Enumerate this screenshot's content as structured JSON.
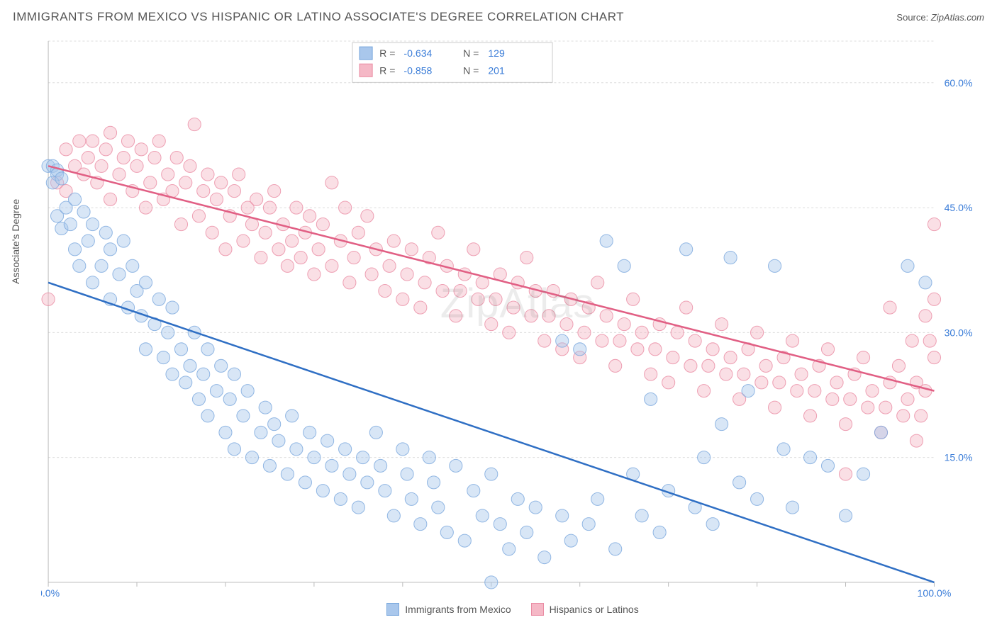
{
  "title": "IMMIGRANTS FROM MEXICO VS HISPANIC OR LATINO ASSOCIATE'S DEGREE CORRELATION CHART",
  "source_label": "Source:",
  "source_value": "ZipAtlas.com",
  "y_axis_label": "Associate's Degree",
  "watermark": "ZipAtlas",
  "chart": {
    "type": "scatter",
    "xlim": [
      0,
      100
    ],
    "ylim": [
      0,
      65
    ],
    "x_ticks": [
      0,
      100
    ],
    "x_tick_labels": [
      "0.0%",
      "100.0%"
    ],
    "x_minor_ticks": [
      10,
      20,
      30,
      40,
      50,
      60,
      70,
      80,
      90
    ],
    "y_ticks": [
      15,
      30,
      45,
      60
    ],
    "y_tick_labels": [
      "15.0%",
      "30.0%",
      "45.0%",
      "60.0%"
    ],
    "background_color": "#ffffff",
    "grid_color": "#dcdcdc",
    "axis_color": "#bbbbbb",
    "marker_radius": 9,
    "marker_opacity": 0.45,
    "line_width": 2.5,
    "series": [
      {
        "name": "Immigrants from Mexico",
        "fill": "#a9c7ec",
        "stroke": "#7aa8dd",
        "line_color": "#2f6fc4",
        "R": "-0.634",
        "N": "129",
        "trend": {
          "x1": 0,
          "y1": 36,
          "x2": 100,
          "y2": -2
        },
        "points": [
          [
            0,
            50
          ],
          [
            0.5,
            50
          ],
          [
            1,
            49.5
          ],
          [
            1,
            49
          ],
          [
            0.5,
            48
          ],
          [
            1.5,
            48.5
          ],
          [
            1,
            44
          ],
          [
            1.5,
            42.5
          ],
          [
            2,
            45
          ],
          [
            2.5,
            43
          ],
          [
            3,
            46
          ],
          [
            3,
            40
          ],
          [
            4,
            44.5
          ],
          [
            3.5,
            38
          ],
          [
            4.5,
            41
          ],
          [
            5,
            43
          ],
          [
            5,
            36
          ],
          [
            6,
            38
          ],
          [
            6.5,
            42
          ],
          [
            7,
            40
          ],
          [
            7,
            34
          ],
          [
            8,
            37
          ],
          [
            8.5,
            41
          ],
          [
            9,
            33
          ],
          [
            9.5,
            38
          ],
          [
            10,
            35
          ],
          [
            10.5,
            32
          ],
          [
            11,
            36
          ],
          [
            11,
            28
          ],
          [
            12,
            31
          ],
          [
            12.5,
            34
          ],
          [
            13,
            27
          ],
          [
            13.5,
            30
          ],
          [
            14,
            33
          ],
          [
            14,
            25
          ],
          [
            15,
            28
          ],
          [
            15.5,
            24
          ],
          [
            16,
            26
          ],
          [
            16.5,
            30
          ],
          [
            17,
            22
          ],
          [
            17.5,
            25
          ],
          [
            18,
            28
          ],
          [
            18,
            20
          ],
          [
            19,
            23
          ],
          [
            19.5,
            26
          ],
          [
            20,
            18
          ],
          [
            20.5,
            22
          ],
          [
            21,
            25
          ],
          [
            21,
            16
          ],
          [
            22,
            20
          ],
          [
            22.5,
            23
          ],
          [
            23,
            15
          ],
          [
            24,
            18
          ],
          [
            24.5,
            21
          ],
          [
            25,
            14
          ],
          [
            25.5,
            19
          ],
          [
            26,
            17
          ],
          [
            27,
            13
          ],
          [
            27.5,
            20
          ],
          [
            28,
            16
          ],
          [
            29,
            12
          ],
          [
            29.5,
            18
          ],
          [
            30,
            15
          ],
          [
            31,
            11
          ],
          [
            31.5,
            17
          ],
          [
            32,
            14
          ],
          [
            33,
            10
          ],
          [
            33.5,
            16
          ],
          [
            34,
            13
          ],
          [
            35,
            9
          ],
          [
            35.5,
            15
          ],
          [
            36,
            12
          ],
          [
            37,
            18
          ],
          [
            37.5,
            14
          ],
          [
            38,
            11
          ],
          [
            39,
            8
          ],
          [
            40,
            16
          ],
          [
            40.5,
            13
          ],
          [
            41,
            10
          ],
          [
            42,
            7
          ],
          [
            43,
            15
          ],
          [
            43.5,
            12
          ],
          [
            44,
            9
          ],
          [
            45,
            6
          ],
          [
            46,
            14
          ],
          [
            47,
            5
          ],
          [
            48,
            11
          ],
          [
            49,
            8
          ],
          [
            50,
            0
          ],
          [
            50,
            13
          ],
          [
            51,
            7
          ],
          [
            52,
            4
          ],
          [
            53,
            10
          ],
          [
            54,
            6
          ],
          [
            55,
            9
          ],
          [
            56,
            3
          ],
          [
            58,
            29
          ],
          [
            58,
            8
          ],
          [
            59,
            5
          ],
          [
            60,
            28
          ],
          [
            61,
            7
          ],
          [
            62,
            10
          ],
          [
            63,
            41
          ],
          [
            64,
            4
          ],
          [
            65,
            38
          ],
          [
            66,
            13
          ],
          [
            67,
            8
          ],
          [
            68,
            22
          ],
          [
            69,
            6
          ],
          [
            70,
            11
          ],
          [
            72,
            40
          ],
          [
            73,
            9
          ],
          [
            74,
            15
          ],
          [
            75,
            7
          ],
          [
            76,
            19
          ],
          [
            77,
            39
          ],
          [
            78,
            12
          ],
          [
            79,
            23
          ],
          [
            80,
            10
          ],
          [
            82,
            38
          ],
          [
            83,
            16
          ],
          [
            84,
            9
          ],
          [
            86,
            15
          ],
          [
            88,
            14
          ],
          [
            90,
            8
          ],
          [
            92,
            13
          ],
          [
            94,
            18
          ],
          [
            97,
            38
          ],
          [
            99,
            36
          ]
        ]
      },
      {
        "name": "Hispanics or Latinos",
        "fill": "#f5b8c6",
        "stroke": "#ea8ba3",
        "line_color": "#e15f84",
        "R": "-0.858",
        "N": "201",
        "trend": {
          "x1": 0,
          "y1": 50,
          "x2": 100,
          "y2": 23
        },
        "points": [
          [
            0,
            34
          ],
          [
            1,
            48
          ],
          [
            2,
            47
          ],
          [
            2,
            52
          ],
          [
            3,
            50
          ],
          [
            3.5,
            53
          ],
          [
            4,
            49
          ],
          [
            4.5,
            51
          ],
          [
            5,
            53
          ],
          [
            5.5,
            48
          ],
          [
            6,
            50
          ],
          [
            6.5,
            52
          ],
          [
            7,
            54
          ],
          [
            7,
            46
          ],
          [
            8,
            49
          ],
          [
            8.5,
            51
          ],
          [
            9,
            53
          ],
          [
            9.5,
            47
          ],
          [
            10,
            50
          ],
          [
            10.5,
            52
          ],
          [
            11,
            45
          ],
          [
            11.5,
            48
          ],
          [
            12,
            51
          ],
          [
            12.5,
            53
          ],
          [
            13,
            46
          ],
          [
            13.5,
            49
          ],
          [
            14,
            47
          ],
          [
            14.5,
            51
          ],
          [
            15,
            43
          ],
          [
            15.5,
            48
          ],
          [
            16,
            50
          ],
          [
            16.5,
            55
          ],
          [
            17,
            44
          ],
          [
            17.5,
            47
          ],
          [
            18,
            49
          ],
          [
            18.5,
            42
          ],
          [
            19,
            46
          ],
          [
            19.5,
            48
          ],
          [
            20,
            40
          ],
          [
            20.5,
            44
          ],
          [
            21,
            47
          ],
          [
            21.5,
            49
          ],
          [
            22,
            41
          ],
          [
            22.5,
            45
          ],
          [
            23,
            43
          ],
          [
            23.5,
            46
          ],
          [
            24,
            39
          ],
          [
            24.5,
            42
          ],
          [
            25,
            45
          ],
          [
            25.5,
            47
          ],
          [
            26,
            40
          ],
          [
            26.5,
            43
          ],
          [
            27,
            38
          ],
          [
            27.5,
            41
          ],
          [
            28,
            45
          ],
          [
            28.5,
            39
          ],
          [
            29,
            42
          ],
          [
            29.5,
            44
          ],
          [
            30,
            37
          ],
          [
            30.5,
            40
          ],
          [
            31,
            43
          ],
          [
            32,
            48
          ],
          [
            32,
            38
          ],
          [
            33,
            41
          ],
          [
            33.5,
            45
          ],
          [
            34,
            36
          ],
          [
            34.5,
            39
          ],
          [
            35,
            42
          ],
          [
            36,
            44
          ],
          [
            36.5,
            37
          ],
          [
            37,
            40
          ],
          [
            38,
            35
          ],
          [
            38.5,
            38
          ],
          [
            39,
            41
          ],
          [
            40,
            34
          ],
          [
            40.5,
            37
          ],
          [
            41,
            40
          ],
          [
            42,
            33
          ],
          [
            42.5,
            36
          ],
          [
            43,
            39
          ],
          [
            44,
            42
          ],
          [
            44.5,
            35
          ],
          [
            45,
            38
          ],
          [
            46,
            32
          ],
          [
            46.5,
            35
          ],
          [
            47,
            37
          ],
          [
            48,
            40
          ],
          [
            48.5,
            34
          ],
          [
            49,
            36
          ],
          [
            50,
            31
          ],
          [
            50.5,
            34
          ],
          [
            51,
            37
          ],
          [
            52,
            30
          ],
          [
            52.5,
            33
          ],
          [
            53,
            36
          ],
          [
            54,
            39
          ],
          [
            54.5,
            32
          ],
          [
            55,
            35
          ],
          [
            56,
            29
          ],
          [
            56.5,
            32
          ],
          [
            57,
            35
          ],
          [
            58,
            28
          ],
          [
            58.5,
            31
          ],
          [
            59,
            34
          ],
          [
            60,
            27
          ],
          [
            60.5,
            30
          ],
          [
            61,
            33
          ],
          [
            62,
            36
          ],
          [
            62.5,
            29
          ],
          [
            63,
            32
          ],
          [
            64,
            26
          ],
          [
            64.5,
            29
          ],
          [
            65,
            31
          ],
          [
            66,
            34
          ],
          [
            66.5,
            28
          ],
          [
            67,
            30
          ],
          [
            68,
            25
          ],
          [
            68.5,
            28
          ],
          [
            69,
            31
          ],
          [
            70,
            24
          ],
          [
            70.5,
            27
          ],
          [
            71,
            30
          ],
          [
            72,
            33
          ],
          [
            72.5,
            26
          ],
          [
            73,
            29
          ],
          [
            74,
            23
          ],
          [
            74.5,
            26
          ],
          [
            75,
            28
          ],
          [
            76,
            31
          ],
          [
            76.5,
            25
          ],
          [
            77,
            27
          ],
          [
            78,
            22
          ],
          [
            78.5,
            25
          ],
          [
            79,
            28
          ],
          [
            80,
            30
          ],
          [
            80.5,
            24
          ],
          [
            81,
            26
          ],
          [
            82,
            21
          ],
          [
            82.5,
            24
          ],
          [
            83,
            27
          ],
          [
            84,
            29
          ],
          [
            84.5,
            23
          ],
          [
            85,
            25
          ],
          [
            86,
            20
          ],
          [
            86.5,
            23
          ],
          [
            87,
            26
          ],
          [
            88,
            28
          ],
          [
            88.5,
            22
          ],
          [
            89,
            24
          ],
          [
            90,
            13
          ],
          [
            90,
            19
          ],
          [
            90.5,
            22
          ],
          [
            91,
            25
          ],
          [
            92,
            27
          ],
          [
            92.5,
            21
          ],
          [
            93,
            23
          ],
          [
            94,
            18
          ],
          [
            94.5,
            21
          ],
          [
            95,
            24
          ],
          [
            95,
            33
          ],
          [
            96,
            26
          ],
          [
            96.5,
            20
          ],
          [
            97,
            22
          ],
          [
            97.5,
            29
          ],
          [
            98,
            17
          ],
          [
            98,
            24
          ],
          [
            98.5,
            20
          ],
          [
            99,
            23
          ],
          [
            99,
            32
          ],
          [
            99.5,
            29
          ],
          [
            100,
            43
          ],
          [
            100,
            34
          ],
          [
            100,
            27
          ]
        ]
      }
    ]
  },
  "legend_top": {
    "R_label": "R =",
    "N_label": "N ="
  },
  "legend_bottom": [
    {
      "label": "Immigrants from Mexico",
      "fill": "#a9c7ec",
      "stroke": "#7aa8dd"
    },
    {
      "label": "Hispanics or Latinos",
      "fill": "#f5b8c6",
      "stroke": "#ea8ba3"
    }
  ]
}
